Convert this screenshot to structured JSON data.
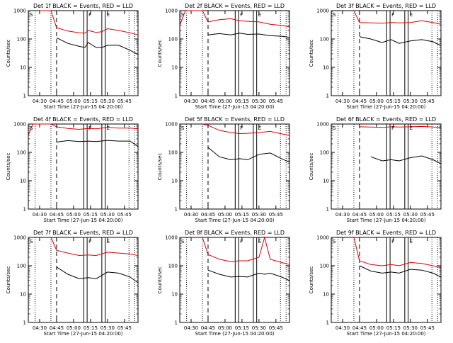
{
  "chart_data": {
    "type": "line",
    "layout": "3x3 grid of panels",
    "colors": {
      "events": "#000000",
      "lld": "#dd0000",
      "background": "#ffffff"
    },
    "x_tick_labels": [
      "04:30",
      "04:45",
      "05:00",
      "05:15",
      "05:30",
      "05:45"
    ],
    "xlabel": "Start Time (27-Jun-15 04:20:00)",
    "ylabel": "Counts/sec",
    "y_tick_labels": [
      "1",
      "10",
      "100",
      "1000"
    ],
    "ylim": [
      1,
      1000
    ],
    "y_scale": "log",
    "xlim": [
      "04:20",
      "05:57"
    ],
    "marker_labels": [
      "S",
      "F",
      "E"
    ],
    "panels": [
      {
        "title": "Det 1f BLACK = Events, RED = LLD",
        "x": [
          "04:29",
          "04:30",
          "04:40",
          "04:45",
          "04:55",
          "05:05",
          "05:10",
          "05:13",
          "05:20",
          "05:25",
          "05:30",
          "05:40",
          "05:50",
          "05:57"
        ],
        "series": [
          {
            "name": "BLACK",
            "values": [
              null,
              null,
              null,
              110,
              70,
              55,
              50,
              75,
              50,
              50,
              60,
              60,
              40,
              28
            ]
          },
          {
            "name": "RED",
            "values": [
              null,
              1000,
              1000,
              250,
              190,
              165,
              160,
              200,
              170,
              180,
              230,
              200,
              165,
              140
            ]
          }
        ]
      },
      {
        "title": "Det 2f BLACK = Events, RED = LLD",
        "x": [
          "04:20",
          "04:25",
          "04:29",
          "04:40",
          "04:45",
          "04:55",
          "05:05",
          "05:13",
          "05:20",
          "05:30",
          "05:40",
          "05:50",
          "05:57"
        ],
        "series": [
          {
            "name": "BLACK",
            "values": [
              null,
              null,
              null,
              null,
              140,
              155,
              140,
              160,
              145,
              150,
              130,
              125,
              115
            ]
          },
          {
            "name": "RED",
            "values": [
              300,
              1000,
              1000,
              1000,
              400,
              480,
              520,
              440,
              420,
              400,
              330,
              300,
              270
            ]
          }
        ]
      },
      {
        "title": "Det 3f BLACK = Events, RED = LLD",
        "x": [
          "04:29",
          "04:40",
          "04:45",
          "04:55",
          "05:05",
          "05:13",
          "05:20",
          "05:30",
          "05:40",
          "05:50",
          "05:57"
        ],
        "series": [
          {
            "name": "BLACK",
            "values": [
              null,
              null,
              120,
              100,
              75,
              95,
              70,
              85,
              95,
              80,
              58
            ]
          },
          {
            "name": "RED",
            "values": [
              null,
              1000,
              380,
              370,
              360,
              380,
              370,
              380,
              440,
              380,
              330
            ]
          }
        ]
      },
      {
        "title": "Det 4f BLACK = Events, RED = LLD",
        "x": [
          "04:20",
          "04:24",
          "04:29",
          "04:40",
          "04:45",
          "04:55",
          "05:05",
          "05:13",
          "05:20",
          "05:30",
          "05:40",
          "05:50",
          "05:57"
        ],
        "series": [
          {
            "name": "BLACK",
            "values": [
              null,
              null,
              null,
              null,
              230,
              260,
              240,
              250,
              240,
              265,
              250,
              250,
              160
            ]
          },
          {
            "name": "RED",
            "values": [
              400,
              1000,
              1000,
              1000,
              800,
              700,
              650,
              700,
              680,
              760,
              720,
              720,
              680
            ]
          }
        ]
      },
      {
        "title": "Det 5f BLACK = Events, RED = LLD",
        "x": [
          "04:29",
          "04:40",
          "04:45",
          "04:55",
          "05:05",
          "05:13",
          "05:20",
          "05:30",
          "05:40",
          "05:50",
          "05:57"
        ],
        "series": [
          {
            "name": "BLACK",
            "values": [
              null,
              null,
              150,
              70,
              55,
              60,
              55,
              85,
              95,
              60,
              45
            ]
          },
          {
            "name": "RED",
            "values": [
              null,
              1000,
              900,
              600,
              500,
              460,
              470,
              500,
              550,
              450,
              400
            ]
          }
        ]
      },
      {
        "title": "Det 6f BLACK = Events, RED = LLD",
        "x": [
          "04:29",
          "04:45",
          "04:55",
          "05:05",
          "05:13",
          "05:20",
          "05:30",
          "05:40",
          "05:50",
          "05:57"
        ],
        "series": [
          {
            "name": "BLACK",
            "values": [
              null,
              null,
              70,
              50,
              55,
              50,
              65,
              75,
              55,
              40
            ]
          },
          {
            "name": "RED",
            "values": [
              null,
              800,
              780,
              760,
              800,
              780,
              800,
              820,
              780,
              760
            ]
          }
        ]
      },
      {
        "title": "Det 7f BLACK = Events, RED = LLD",
        "x": [
          "04:29",
          "04:40",
          "04:45",
          "04:55",
          "05:05",
          "05:13",
          "05:20",
          "05:30",
          "05:40",
          "05:50",
          "05:57"
        ],
        "series": [
          {
            "name": "BLACK",
            "values": [
              null,
              null,
              90,
              50,
              35,
              38,
              35,
              60,
              55,
              40,
              25
            ]
          },
          {
            "name": "RED",
            "values": [
              null,
              1000,
              350,
              280,
              230,
              240,
              230,
              300,
              280,
              260,
              230
            ]
          }
        ]
      },
      {
        "title": "Det 8f BLACK = Events, RED = LLD",
        "x": [
          "04:29",
          "04:40",
          "04:45",
          "04:55",
          "05:05",
          "05:13",
          "05:20",
          "05:30",
          "05:35",
          "05:40",
          "05:50",
          "05:57"
        ],
        "series": [
          {
            "name": "BLACK",
            "values": [
              null,
              null,
              70,
              50,
              40,
              42,
              40,
              55,
              50,
              55,
              40,
              30
            ]
          },
          {
            "name": "RED",
            "values": [
              null,
              1000,
              250,
              170,
              140,
              150,
              150,
              200,
              1000,
              170,
              130,
              110
            ]
          }
        ]
      },
      {
        "title": "Det 9f BLACK = Events, RED = LLD",
        "x": [
          "04:29",
          "04:40",
          "04:45",
          "04:55",
          "05:05",
          "05:13",
          "05:20",
          "05:30",
          "05:40",
          "05:50",
          "05:57"
        ],
        "series": [
          {
            "name": "BLACK",
            "values": [
              null,
              null,
              100,
              65,
              55,
              60,
              55,
              75,
              70,
              55,
              40
            ]
          },
          {
            "name": "RED",
            "values": [
              null,
              1000,
              150,
              110,
              100,
              110,
              100,
              130,
              120,
              100,
              85
            ]
          }
        ]
      }
    ],
    "vertical_markers": [
      {
        "label": "",
        "time": "04:26",
        "style": "dotted"
      },
      {
        "label": "",
        "time": "04:40",
        "style": "dotted"
      },
      {
        "label": "",
        "time": "04:45",
        "style": "dashed"
      },
      {
        "label": "",
        "time": "05:09",
        "style": "solid"
      },
      {
        "label": "F",
        "time": "05:12",
        "style": "solid"
      },
      {
        "label": "",
        "time": "05:25",
        "style": "solid"
      },
      {
        "label": "E",
        "time": "05:28",
        "style": "solid"
      },
      {
        "label": "",
        "time": "05:49",
        "style": "dotted"
      },
      {
        "label": "",
        "time": "05:54",
        "style": "dotted"
      }
    ],
    "grid": false,
    "legend": "in panel titles"
  }
}
